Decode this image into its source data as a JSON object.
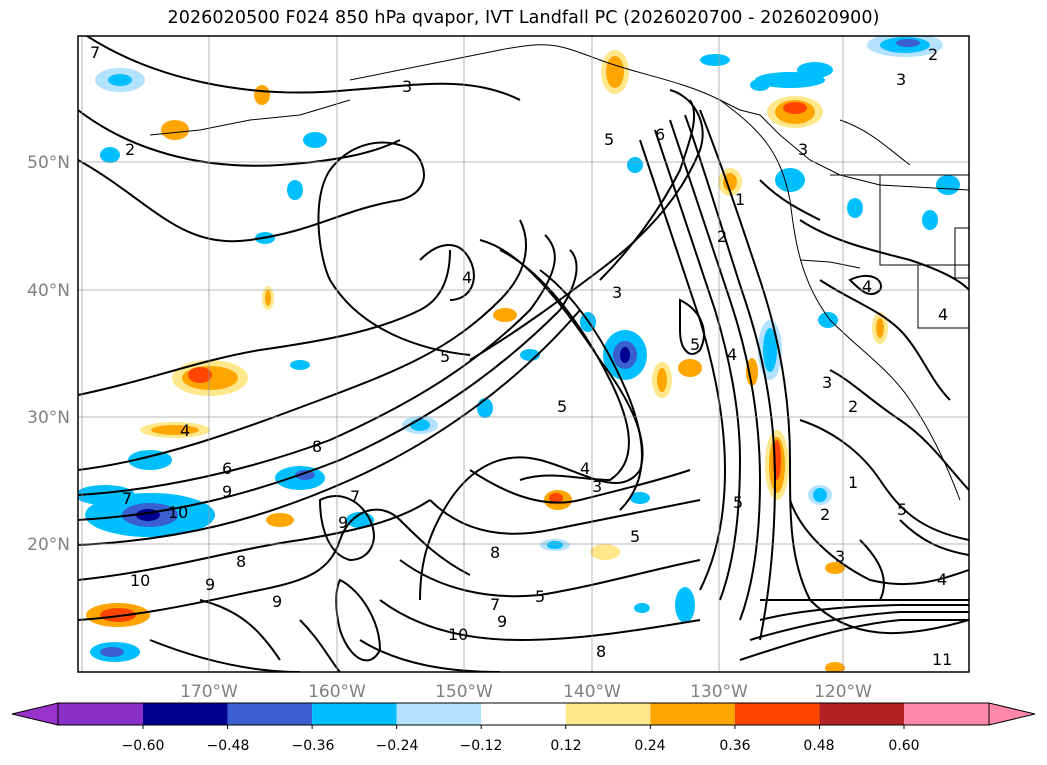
{
  "title": "2026020500 F024 850 hPa qvapor, IVT Landfall PC (2026020700 - 2026020900)",
  "lat_labels": [
    "50°N",
    "40°N",
    "30°N",
    "20°N"
  ],
  "lon_labels": [
    "170°W",
    "160°W",
    "150°W",
    "140°W",
    "130°W",
    "120°W"
  ],
  "contour_labels": [
    "7",
    "2",
    "3",
    "2",
    "3",
    "3",
    "5",
    "6",
    "1",
    "2",
    "4",
    "4",
    "4",
    "3",
    "5",
    "4",
    "5",
    "3",
    "2",
    "4",
    "7",
    "8",
    "6",
    "9",
    "10",
    "7",
    "5",
    "4",
    "3",
    "5",
    "2",
    "5",
    "9",
    "8",
    "9",
    "10",
    "9",
    "8",
    "7",
    "5",
    "10",
    "9",
    "8",
    "5",
    "3",
    "4",
    "1",
    "11"
  ],
  "colorbar": {
    "ticks": [
      "−0.60",
      "−0.48",
      "−0.36",
      "−0.24",
      "−0.12",
      "0.12",
      "0.24",
      "0.36",
      "0.48",
      "0.60"
    ],
    "colors": [
      "#9933cc",
      "#8b2fc9",
      "#000090",
      "#3a5fd0",
      "#00bfff",
      "#b3e2ff",
      "#ffffff",
      "#ffe88c",
      "#ffa500",
      "#ff4500",
      "#b22222",
      "#ff88aa"
    ]
  }
}
